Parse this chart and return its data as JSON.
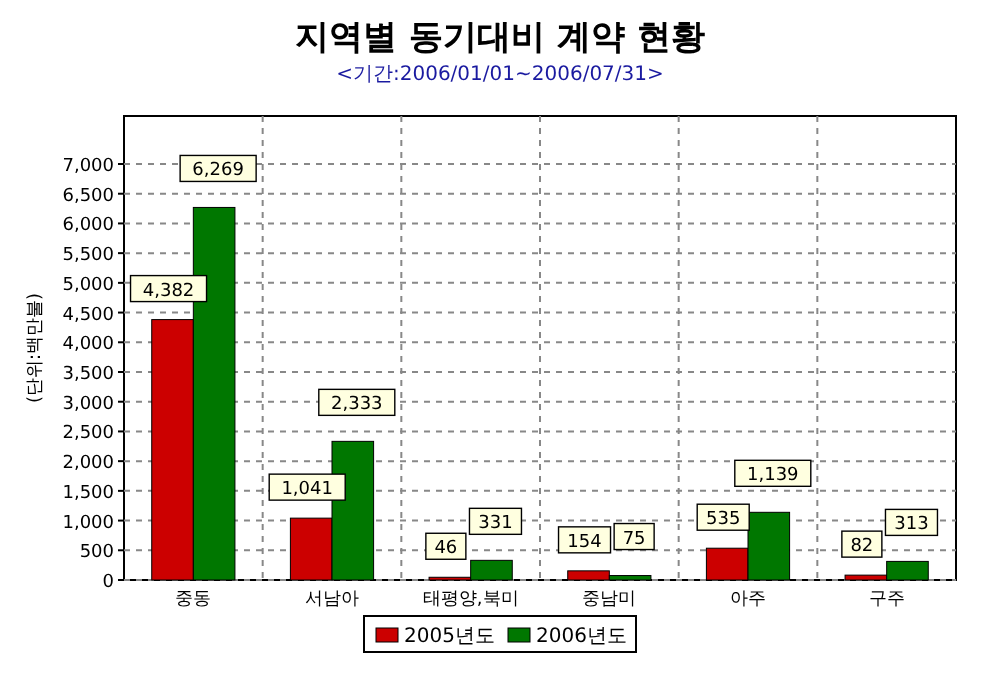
{
  "chart_data": {
    "type": "bar",
    "title": "지역별 동기대비 계약 현황",
    "subtitle": "<기간:2006/01/01~2006/07/31>",
    "ylabel": "(단위:백만불)",
    "categories": [
      "중동",
      "서남아",
      "태평양,북미",
      "중남미",
      "아주",
      "구주"
    ],
    "series": [
      {
        "name": "2005년도",
        "color": "#cc0000",
        "values": [
          4382,
          1041,
          46,
          154,
          535,
          82
        ],
        "value_labels": [
          "4,382",
          "1,041",
          "46",
          "154",
          "535",
          "82"
        ]
      },
      {
        "name": "2006년도",
        "color": "#007700",
        "values": [
          6269,
          2333,
          331,
          75,
          1139,
          313
        ],
        "value_labels": [
          "6,269",
          "2,333",
          "331",
          "75",
          "1,139",
          "313"
        ]
      }
    ],
    "ylim": [
      0,
      7000
    ],
    "yticks": [
      0,
      500,
      {
        "value": 1000,
        "label": "1,000"
      },
      {
        "value": 1500,
        "label": "1,500"
      },
      {
        "value": 2000,
        "label": "2,000"
      },
      {
        "value": 2500,
        "label": "2,500"
      },
      {
        "value": 3000,
        "label": "3,000"
      },
      {
        "value": 3500,
        "label": "3,500"
      },
      {
        "value": 4000,
        "label": "4,000"
      },
      {
        "value": 4500,
        "label": "4,500"
      },
      {
        "value": 5000,
        "label": "5,000"
      },
      {
        "value": 5500,
        "label": "5,500"
      },
      {
        "value": 6000,
        "label": "6,000"
      },
      {
        "value": 6500,
        "label": "6,500"
      },
      {
        "value": 7000,
        "label": "7,000"
      }
    ],
    "grid": true,
    "legend": "bottom"
  }
}
